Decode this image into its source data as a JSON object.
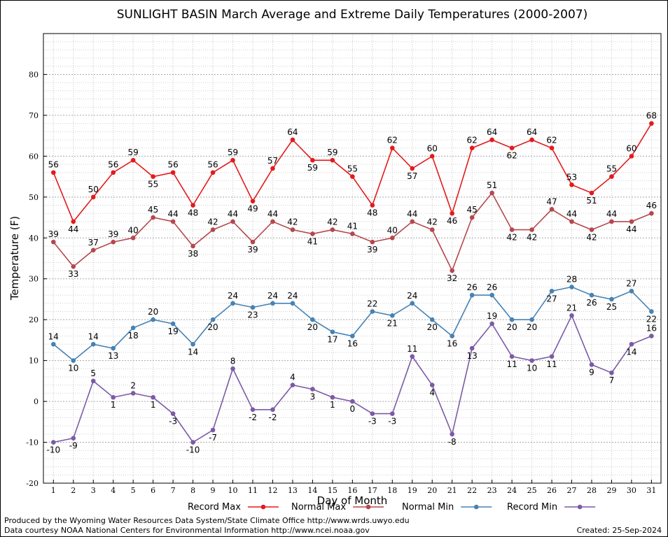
{
  "chart_data": {
    "type": "line",
    "title": "SUNLIGHT BASIN March Average and Extreme Daily Temperatures (2000-2007)",
    "xlabel": "Day of Month",
    "ylabel": "Temperature (F)",
    "ylim": [
      -20,
      90
    ],
    "yticks": [
      -20,
      -10,
      0,
      10,
      20,
      30,
      40,
      50,
      60,
      70,
      80
    ],
    "grid": true,
    "legend_placement": "bottom",
    "x": [
      1,
      2,
      3,
      4,
      5,
      6,
      7,
      8,
      9,
      10,
      11,
      12,
      13,
      14,
      15,
      16,
      17,
      18,
      19,
      20,
      21,
      22,
      23,
      24,
      25,
      26,
      27,
      28,
      29,
      30,
      31
    ],
    "series": [
      {
        "name": "Record Max",
        "color": "#e41a1c",
        "values": [
          56,
          44,
          50,
          56,
          59,
          55,
          56,
          48,
          56,
          59,
          49,
          57,
          64,
          59,
          59,
          55,
          48,
          62,
          57,
          60,
          46,
          62,
          64,
          62,
          64,
          62,
          53,
          51,
          55,
          60,
          68
        ]
      },
      {
        "name": "Normal Max",
        "color": "#b5474d",
        "values": [
          39,
          33,
          37,
          39,
          40,
          45,
          44,
          38,
          42,
          44,
          39,
          44,
          42,
          41,
          42,
          41,
          39,
          40,
          44,
          42,
          32,
          45,
          51,
          42,
          42,
          47,
          44,
          42,
          44,
          44,
          46
        ]
      },
      {
        "name": "Normal Min",
        "color": "#4682b4",
        "values": [
          14,
          10,
          14,
          13,
          18,
          20,
          19,
          14,
          20,
          24,
          23,
          24,
          24,
          20,
          17,
          16,
          22,
          21,
          24,
          20,
          16,
          26,
          26,
          20,
          20,
          27,
          28,
          26,
          25,
          27,
          22
        ]
      },
      {
        "name": "Record Min",
        "color": "#7b5aa6",
        "values": [
          -10,
          -9,
          5,
          1,
          2,
          1,
          -3,
          -10,
          -7,
          8,
          -2,
          -2,
          4,
          3,
          1,
          0,
          -3,
          -3,
          11,
          4,
          -8,
          13,
          19,
          11,
          10,
          11,
          21,
          9,
          7,
          14,
          16
        ]
      }
    ]
  },
  "footer": {
    "line1": "Produced by the Wyoming Water Resources Data System/State Climate Office http://www.wrds.uwyo.edu",
    "line2": "Data courtesy NOAA National Centers for Environmental Information http://www.ncei.noaa.gov",
    "created": "Created:  25-Sep-2024"
  }
}
